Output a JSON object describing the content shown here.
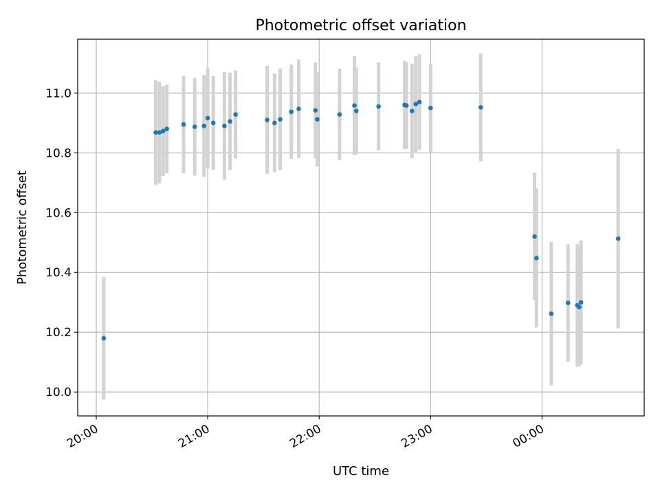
{
  "chart_data": {
    "type": "scatter",
    "title": "Photometric offset variation",
    "xlabel": "UTC time",
    "ylabel": "Photometric offset",
    "x_format": "HH:MM",
    "xlim": [
      "19:50",
      "00:55"
    ],
    "ylim": [
      9.92,
      11.18
    ],
    "x_ticks": [
      "20:00",
      "21:00",
      "22:00",
      "23:00",
      "00:00"
    ],
    "y_ticks": [
      "10.0",
      "10.2",
      "10.4",
      "10.6",
      "10.8",
      "11.0"
    ],
    "grid": true,
    "colors": {
      "marker": "#1f77b4",
      "errorbar": "#d3d3d3",
      "grid": "#b0b0b0",
      "axes": "#000000"
    },
    "points": [
      {
        "x": "20:04",
        "y": 10.18,
        "err": 0.205
      },
      {
        "x": "20:32",
        "y": 10.868,
        "err": 0.175
      },
      {
        "x": "20:34",
        "y": 10.868,
        "err": 0.17
      },
      {
        "x": "20:36",
        "y": 10.873,
        "err": 0.15
      },
      {
        "x": "20:38",
        "y": 10.88,
        "err": 0.148
      },
      {
        "x": "20:47",
        "y": 10.895,
        "err": 0.163
      },
      {
        "x": "20:53",
        "y": 10.887,
        "err": 0.163
      },
      {
        "x": "20:58",
        "y": 10.89,
        "err": 0.17
      },
      {
        "x": "21:00",
        "y": 10.916,
        "err": 0.168
      },
      {
        "x": "21:03",
        "y": 10.9,
        "err": 0.157
      },
      {
        "x": "21:09",
        "y": 10.89,
        "err": 0.18
      },
      {
        "x": "21:12",
        "y": 10.905,
        "err": 0.163
      },
      {
        "x": "21:15",
        "y": 10.928,
        "err": 0.147
      },
      {
        "x": "21:32",
        "y": 10.91,
        "err": 0.18
      },
      {
        "x": "21:36",
        "y": 10.9,
        "err": 0.165
      },
      {
        "x": "21:39",
        "y": 10.912,
        "err": 0.17
      },
      {
        "x": "21:45",
        "y": 10.937,
        "err": 0.158
      },
      {
        "x": "21:49",
        "y": 10.947,
        "err": 0.165
      },
      {
        "x": "21:58",
        "y": 10.942,
        "err": 0.16
      },
      {
        "x": "21:59",
        "y": 10.912,
        "err": 0.158
      },
      {
        "x": "22:11",
        "y": 10.928,
        "err": 0.153
      },
      {
        "x": "22:19",
        "y": 10.958,
        "err": 0.165
      },
      {
        "x": "22:20",
        "y": 10.94,
        "err": 0.145
      },
      {
        "x": "22:32",
        "y": 10.955,
        "err": 0.147
      },
      {
        "x": "22:46",
        "y": 10.96,
        "err": 0.148
      },
      {
        "x": "22:47",
        "y": 10.958,
        "err": 0.145
      },
      {
        "x": "22:50",
        "y": 10.94,
        "err": 0.158
      },
      {
        "x": "22:52",
        "y": 10.963,
        "err": 0.16
      },
      {
        "x": "22:54",
        "y": 10.97,
        "err": 0.16
      },
      {
        "x": "23:00",
        "y": 10.95,
        "err": 0.148
      },
      {
        "x": "23:27",
        "y": 10.952,
        "err": 0.18
      },
      {
        "x": "23:56",
        "y": 10.52,
        "err": 0.213
      },
      {
        "x": "23:57",
        "y": 10.448,
        "err": 0.232
      },
      {
        "x": "00:05",
        "y": 10.262,
        "err": 0.24
      },
      {
        "x": "00:14",
        "y": 10.298,
        "err": 0.196
      },
      {
        "x": "00:19",
        "y": 10.29,
        "err": 0.205
      },
      {
        "x": "00:20",
        "y": 10.284,
        "err": 0.198
      },
      {
        "x": "00:21",
        "y": 10.3,
        "err": 0.207
      },
      {
        "x": "00:41",
        "y": 10.513,
        "err": 0.3
      }
    ]
  }
}
